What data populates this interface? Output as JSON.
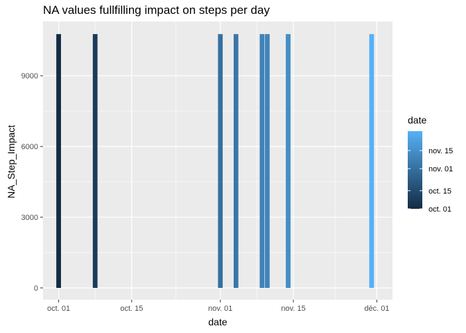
{
  "chart_data": {
    "type": "bar",
    "title": "NA values fullfilling impact on steps per day",
    "xlabel": "date",
    "ylabel": "NA_Step_Impact",
    "x": [
      "2012-10-01",
      "2012-10-08",
      "2012-11-01",
      "2012-11-04",
      "2012-11-09",
      "2012-11-10",
      "2012-11-14",
      "2012-11-30"
    ],
    "values": [
      10766.19,
      10766.19,
      10766.19,
      10766.19,
      10766.19,
      10766.19,
      10766.19,
      10766.19
    ],
    "xlim": [
      "2012-09-28",
      "2012-12-04"
    ],
    "ylim": [
      -500,
      11300
    ],
    "x_ticks": [
      {
        "date": "2012-10-01",
        "label": "oct. 01"
      },
      {
        "date": "2012-10-15",
        "label": "oct. 15"
      },
      {
        "date": "2012-11-01",
        "label": "nov. 01"
      },
      {
        "date": "2012-11-15",
        "label": "nov. 15"
      },
      {
        "date": "2012-12-01",
        "label": "déc. 01"
      }
    ],
    "y_ticks": [
      {
        "value": 0,
        "label": "0"
      },
      {
        "value": 3000,
        "label": "3000"
      },
      {
        "value": 6000,
        "label": "6000"
      },
      {
        "value": 9000,
        "label": "9000"
      }
    ],
    "grid": true,
    "background": "#ebebeb",
    "gridline_color": "#ffffff",
    "fill_scale": {
      "low_color": "#132b43",
      "high_color": "#56b1f7",
      "range": [
        "2012-10-01",
        "2012-11-30"
      ]
    },
    "legend": {
      "title": "date",
      "placement": "right",
      "breaks": [
        {
          "date": "2012-10-01",
          "label": "oct. 01"
        },
        {
          "date": "2012-10-15",
          "label": "oct. 15"
        },
        {
          "date": "2012-11-01",
          "label": "nov. 01"
        },
        {
          "date": "2012-11-15",
          "label": "nov. 15"
        }
      ]
    }
  }
}
